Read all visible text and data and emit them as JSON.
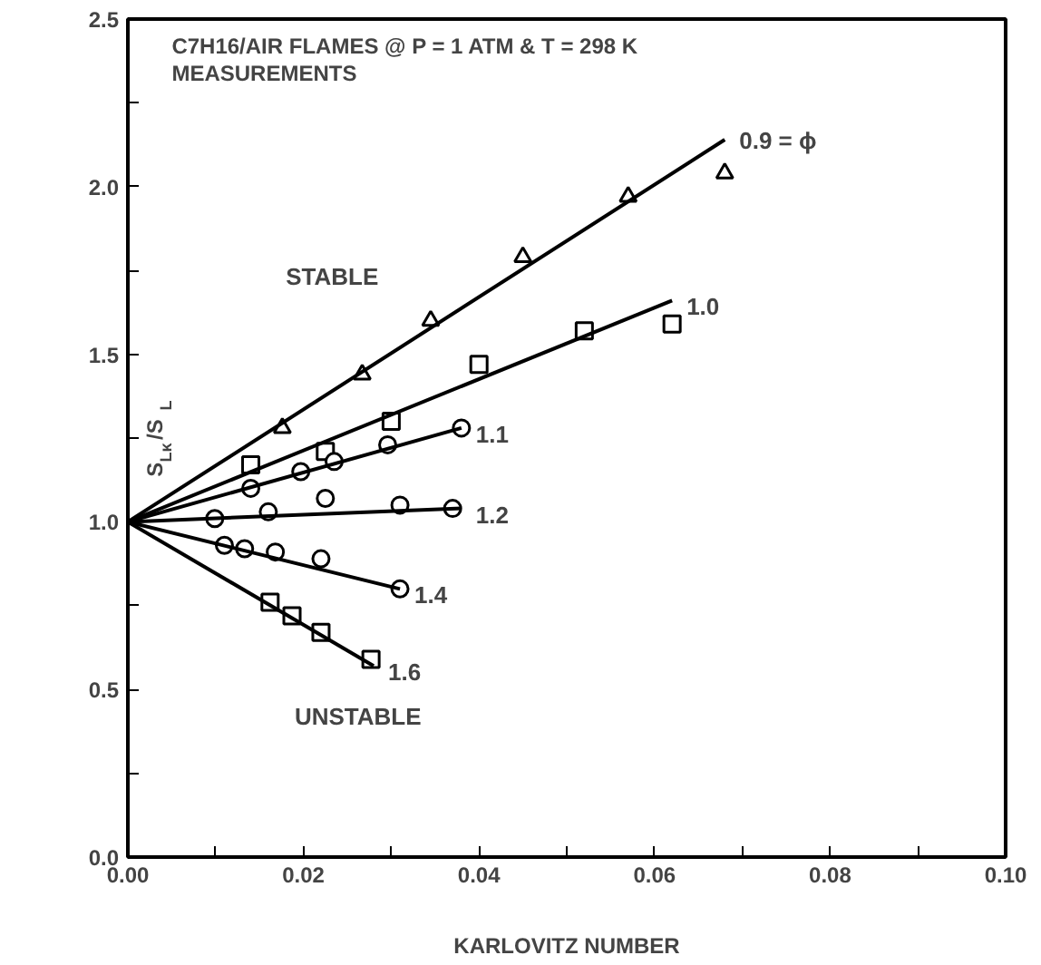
{
  "chart_data": {
    "type": "scatter",
    "title": "C7H16/AIR FLAMES @ P = 1 ATM & T = 298 K",
    "subtitle": "MEASUREMENTS",
    "xlabel": "KARLOVITZ NUMBER",
    "ylabel": "S$_{Lκ}$/S$_{L}$",
    "xlim": [
      0,
      0.1
    ],
    "ylim": [
      0,
      2.5
    ],
    "xticks": [
      {
        "value": 0,
        "label": "0.00"
      },
      {
        "value": 0.01,
        "label": null
      },
      {
        "value": 0.02,
        "label": "0.02"
      },
      {
        "value": 0.03,
        "label": null
      },
      {
        "value": 0.04,
        "label": "0.04"
      },
      {
        "value": 0.05,
        "label": null
      },
      {
        "value": 0.06,
        "label": "0.06"
      },
      {
        "value": 0.07,
        "label": null
      },
      {
        "value": 0.08,
        "label": "0.08"
      },
      {
        "value": 0.09,
        "label": null
      },
      {
        "value": 0.1,
        "label": "0.10"
      }
    ],
    "yticks": [
      {
        "value": 0,
        "label": "0.0"
      },
      {
        "value": 0.25,
        "label": null
      },
      {
        "value": 0.5,
        "label": "0.5"
      },
      {
        "value": 0.75,
        "label": null
      },
      {
        "value": 1,
        "label": "1.0"
      },
      {
        "value": 1.25,
        "label": null
      },
      {
        "value": 1.5,
        "label": "1.5"
      },
      {
        "value": 1.75,
        "label": null
      },
      {
        "value": 2,
        "label": "2.0"
      },
      {
        "value": 2.25,
        "label": null
      },
      {
        "value": 2.5,
        "label": "2.5"
      }
    ],
    "grid": false,
    "legend": false,
    "annotations": [
      "STABLE",
      "UNSTABLE"
    ],
    "series": [
      {
        "type": "scatter",
        "marker": "triangle",
        "color": "#000000",
        "x": [
          0.0176,
          0.0267,
          0.0345,
          0.045,
          0.057,
          0.068
        ],
        "values": [
          1.28,
          1.44,
          1.6,
          1.79,
          1.97,
          2.04
        ]
      },
      {
        "type": "scatter",
        "marker": "square",
        "color": "#000000",
        "x": [
          0.014,
          0.0225,
          0.03,
          0.04,
          0.052,
          0.062
        ],
        "values": [
          1.17,
          1.21,
          1.3,
          1.47,
          1.57,
          1.59
        ]
      },
      {
        "type": "scatter",
        "marker": "circle",
        "color": "#000000",
        "x": [
          0.014,
          0.0197,
          0.0235,
          0.0296,
          0.038
        ],
        "values": [
          1.1,
          1.15,
          1.18,
          1.23,
          1.28
        ]
      },
      {
        "type": "scatter",
        "marker": "circle",
        "color": "#000000",
        "x": [
          0.0099,
          0.016,
          0.0225,
          0.031,
          0.037
        ],
        "values": [
          1.01,
          1.03,
          1.07,
          1.05,
          1.04
        ]
      },
      {
        "type": "scatter",
        "marker": "circle",
        "color": "#000000",
        "x": [
          0.011,
          0.0133,
          0.0168,
          0.022,
          0.031
        ],
        "values": [
          0.93,
          0.92,
          0.91,
          0.89,
          0.8
        ]
      },
      {
        "type": "scatter",
        "marker": "square",
        "color": "#000000",
        "x": [
          0.0162,
          0.0187,
          0.022,
          0.0277
        ],
        "values": [
          0.76,
          0.72,
          0.67,
          0.59
        ]
      },
      {
        "type": "line",
        "name": "0.9 = ϕ",
        "color": "#000000",
        "x": [
          0,
          0.068
        ],
        "values": [
          1,
          2.14
        ]
      },
      {
        "type": "line",
        "name": "1.0",
        "color": "#000000",
        "x": [
          0,
          0.062
        ],
        "values": [
          1,
          1.66
        ]
      },
      {
        "type": "line",
        "name": "1.1",
        "color": "#000000",
        "x": [
          0,
          0.038
        ],
        "values": [
          1,
          1.28
        ]
      },
      {
        "type": "line",
        "name": "1.2",
        "color": "#000000",
        "x": [
          0,
          0.038
        ],
        "values": [
          1,
          1.04
        ]
      },
      {
        "type": "line",
        "name": "1.4",
        "color": "#000000",
        "x": [
          0,
          0.031
        ],
        "values": [
          1,
          0.8
        ]
      },
      {
        "type": "line",
        "name": "1.6",
        "color": "#000000",
        "x": [
          0,
          0.028
        ],
        "values": [
          1,
          0.57
        ]
      }
    ]
  }
}
